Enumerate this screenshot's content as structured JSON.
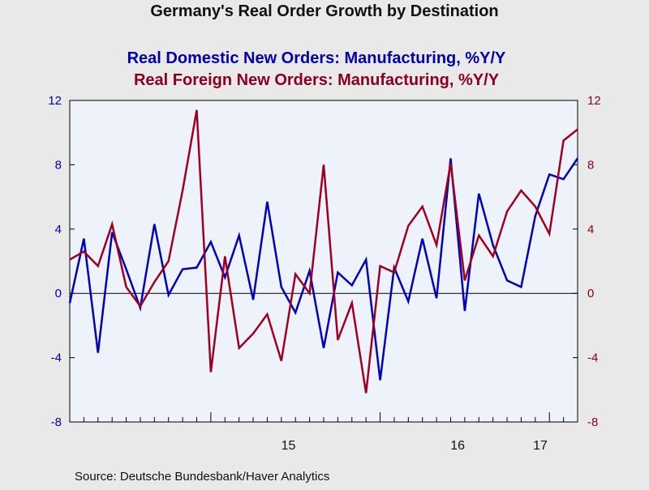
{
  "chart_data": {
    "type": "line",
    "title": "Germany's Real Order Growth by Destination",
    "source": "Source:  Deutsche Bundesbank/Haver Analytics",
    "x_range": [
      "2014-03",
      "2017-03"
    ],
    "x_ticks": [
      {
        "label": "15",
        "year": 2015
      },
      {
        "label": "16",
        "year": 2016
      },
      {
        "label": "17",
        "year": 2017
      }
    ],
    "y_left": {
      "range": [
        -8,
        12
      ],
      "ticks": [
        "-8",
        "-4",
        "0",
        "4",
        "8",
        "12"
      ],
      "color": "#0000aa"
    },
    "y_right": {
      "range": [
        -8,
        12
      ],
      "ticks": [
        "-8",
        "-4",
        "0",
        "4",
        "8",
        "12"
      ],
      "color": "#8b0020"
    },
    "grid": false,
    "zero_line": true,
    "series": [
      {
        "name": "Real Domestic New Orders: Manufacturing, %Y/Y",
        "color": "#0000bb",
        "axis": "left",
        "x": [
          "2014-03",
          "2014-04",
          "2014-05",
          "2014-06",
          "2014-07",
          "2014-08",
          "2014-09",
          "2014-10",
          "2014-11",
          "2014-12",
          "2015-01",
          "2015-02",
          "2015-03",
          "2015-04",
          "2015-05",
          "2015-06",
          "2015-07",
          "2015-08",
          "2015-09",
          "2015-10",
          "2015-11",
          "2015-12",
          "2016-01",
          "2016-02",
          "2016-03",
          "2016-04",
          "2016-05",
          "2016-06",
          "2016-07",
          "2016-08",
          "2016-09",
          "2016-10",
          "2016-11",
          "2016-12",
          "2017-01",
          "2017-02",
          "2017-03"
        ],
        "values": [
          -0.6,
          3.4,
          -3.7,
          3.8,
          1.5,
          -0.9,
          4.3,
          -0.1,
          1.5,
          1.6,
          3.2,
          1.0,
          3.6,
          -0.4,
          5.7,
          0.4,
          -1.2,
          1.4,
          -3.4,
          1.3,
          0.5,
          2.1,
          -5.4,
          1.6,
          -0.5,
          3.4,
          -0.3,
          8.4,
          -1.1,
          6.2,
          3.0,
          0.8,
          0.4,
          4.8,
          7.4,
          7.1,
          8.4
        ]
      },
      {
        "name": "Real Foreign New Orders: Manufacturing, %Y/Y",
        "color": "#a00020",
        "axis": "right",
        "x": [
          "2014-03",
          "2014-04",
          "2014-05",
          "2014-06",
          "2014-07",
          "2014-08",
          "2014-09",
          "2014-10",
          "2014-11",
          "2014-12",
          "2015-01",
          "2015-02",
          "2015-03",
          "2015-04",
          "2015-05",
          "2015-06",
          "2015-07",
          "2015-08",
          "2015-09",
          "2015-10",
          "2015-11",
          "2015-12",
          "2016-01",
          "2016-02",
          "2016-03",
          "2016-04",
          "2016-05",
          "2016-06",
          "2016-07",
          "2016-08",
          "2016-09",
          "2016-10",
          "2016-11",
          "2016-12",
          "2017-01",
          "2017-02",
          "2017-03"
        ],
        "values": [
          2.1,
          2.6,
          1.7,
          4.3,
          0.4,
          -0.8,
          0.7,
          2.0,
          6.4,
          11.4,
          -4.9,
          2.3,
          -3.4,
          -2.5,
          -1.3,
          -4.2,
          1.2,
          0.0,
          8.0,
          -2.9,
          -0.6,
          -6.2,
          1.7,
          1.3,
          4.2,
          5.4,
          3.0,
          8.1,
          0.8,
          3.6,
          2.3,
          5.1,
          6.4,
          5.4,
          3.7,
          9.5,
          10.2
        ]
      }
    ]
  }
}
